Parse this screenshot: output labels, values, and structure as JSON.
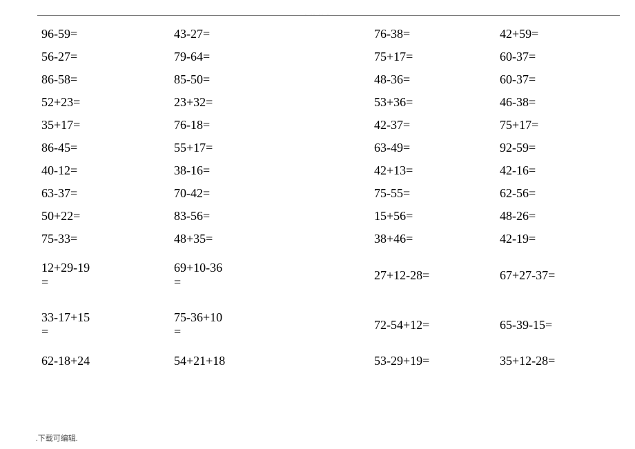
{
  "font_size": 18,
  "text_color": "#000000",
  "background_color": "#ffffff",
  "rule_color": "#7a7a7a",
  "footer_text": ".下载可编辑.",
  "footer_color": "#4a4a4a",
  "header_dots": ".    ..        ..      .",
  "rows": [
    {
      "c1": "96-59=",
      "c2": "43-27=",
      "c3": "76-38=",
      "c4": "42+59="
    },
    {
      "c1": "56-27=",
      "c2": "79-64=",
      "c3": "75+17=",
      "c4": "60-37="
    },
    {
      "c1": "86-58=",
      "c2": "85-50=",
      "c3": "48-36=",
      "c4": "60-37="
    },
    {
      "c1": "52+23=",
      "c2": "23+32=",
      "c3": "53+36=",
      "c4": "46-38="
    },
    {
      "c1": "35+17=",
      "c2": "76-18=",
      "c3": "42-37=",
      "c4": "75+17="
    },
    {
      "c1": "86-45=",
      "c2": "55+17=",
      "c3": "63-49=",
      "c4": "92-59="
    },
    {
      "c1": "40-12=",
      "c2": "38-16=",
      "c3": "42+13=",
      "c4": "42-16="
    },
    {
      "c1": "63-37=",
      "c2": "70-42=",
      "c3": "75-55=",
      "c4": "62-56="
    },
    {
      "c1": "50+22=",
      "c2": "83-56=",
      "c3": "15+56=",
      "c4": "48-26="
    },
    {
      "c1": "75-33=",
      "c2": "48+35=",
      "c3": "38+46=",
      "c4": "42-19="
    },
    {
      "c1": "12+29-19\n=",
      "c2": "69+10-36\n=",
      "c3": "27+12-28=",
      "c4": "67+27-37=",
      "tall": true
    },
    {
      "c1": "33-17+15\n=",
      "c2": "75-36+10\n=",
      "c3": "72-54+12=",
      "c4": "65-39-15=",
      "tall": true
    },
    {
      "c1": "62-18+24",
      "c2": "54+21+18",
      "c3": "53-29+19=",
      "c4": "35+12-28="
    }
  ]
}
